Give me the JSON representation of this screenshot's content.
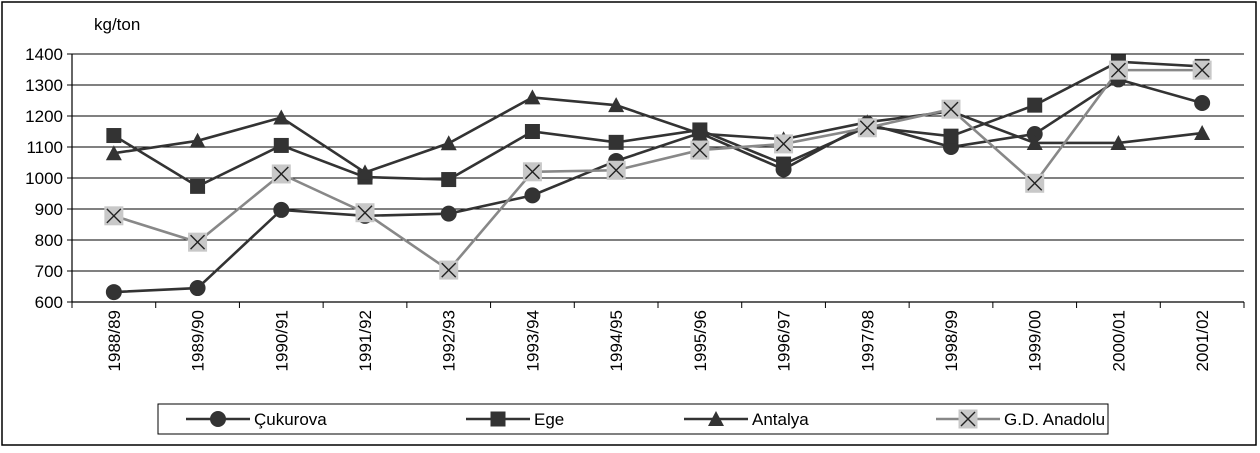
{
  "chart_data": {
    "type": "line",
    "ylabel": "kg/ton",
    "ylim": [
      600,
      1400
    ],
    "yticks": [
      600,
      700,
      800,
      900,
      1000,
      1100,
      1200,
      1300,
      1400
    ],
    "grid": true,
    "legend_position": "bottom",
    "categories": [
      "1988/89",
      "1989/90",
      "1990/91",
      "1991/92",
      "1992/93",
      "1993/94",
      "1994/95",
      "1995/96",
      "1996/97",
      "1997/98",
      "1998/99",
      "1999/00",
      "2000/01",
      "2001/02"
    ],
    "series": [
      {
        "name": "Çukurova",
        "marker": "circle",
        "color": "#333333",
        "values": [
          632,
          645,
          897,
          878,
          885,
          944,
          1055,
          1145,
          1028,
          1175,
          1100,
          1142,
          1318,
          1242
        ]
      },
      {
        "name": "Ege",
        "marker": "square",
        "color": "#333333",
        "values": [
          1137,
          973,
          1105,
          1003,
          995,
          1150,
          1115,
          1155,
          1045,
          1165,
          1135,
          1235,
          1375,
          1360
        ]
      },
      {
        "name": "Antalya",
        "marker": "triangle",
        "color": "#333333",
        "values": [
          1080,
          1120,
          1195,
          1018,
          1112,
          1260,
          1235,
          1143,
          1125,
          1180,
          1215,
          1113,
          1113,
          1145
        ]
      },
      {
        "name": "G.D. Anadolu",
        "marker": "x-square",
        "color": "#888888",
        "values": [
          878,
          793,
          1013,
          888,
          703,
          1020,
          1025,
          1090,
          1110,
          1162,
          1222,
          983,
          1348,
          1348
        ]
      }
    ]
  }
}
